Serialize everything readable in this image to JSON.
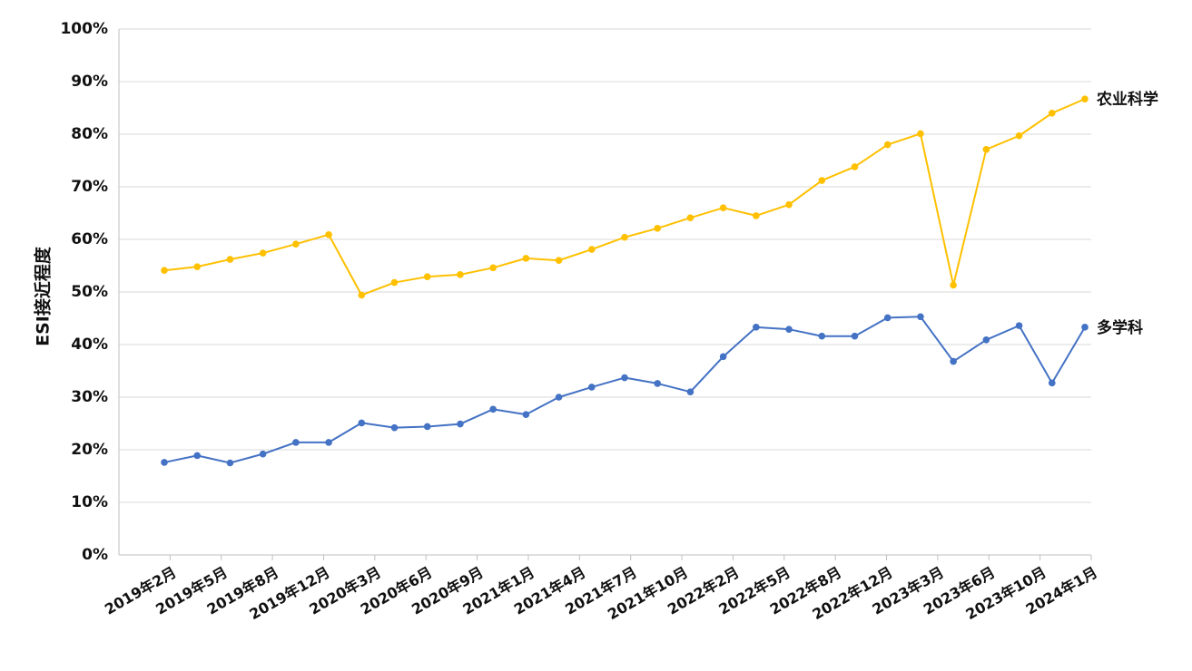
{
  "chart_data": {
    "type": "line",
    "title": "",
    "ylabel": "ESI接近程度",
    "xlabel": "",
    "ylim": [
      0,
      100
    ],
    "yticks": [
      "0%",
      "10%",
      "20%",
      "30%",
      "40%",
      "50%",
      "60%",
      "70%",
      "80%",
      "90%",
      "100%"
    ],
    "xticks": [
      "2019年2月",
      "2019年5月",
      "2019年8月",
      "2019年12月",
      "2020年3月",
      "2020年6月",
      "2020年9月",
      "2021年1月",
      "2021年4月",
      "2021年7月",
      "2021年10月",
      "2022年2月",
      "2022年5月",
      "2022年8月",
      "2022年12月",
      "2023年3月",
      "2023年6月",
      "2023年10月",
      "2024年1月"
    ],
    "grid": true,
    "legend": "none",
    "series": [
      {
        "name": "农业科学",
        "color": "#FFC000",
        "values": [
          54.1,
          54.8,
          56.2,
          57.4,
          59.1,
          60.9,
          49.4,
          51.8,
          52.9,
          53.3,
          54.6,
          56.4,
          56.0,
          58.1,
          60.4,
          62.1,
          64.1,
          66.0,
          64.5,
          66.6,
          71.2,
          73.8,
          78.0,
          80.1,
          51.3,
          77.1,
          79.7,
          84.0,
          86.7
        ]
      },
      {
        "name": "多学科",
        "color": "#4472C4",
        "values": [
          17.6,
          18.9,
          17.5,
          19.2,
          21.4,
          21.4,
          25.1,
          24.2,
          24.4,
          24.9,
          27.7,
          26.7,
          30.0,
          31.9,
          33.7,
          32.6,
          31.0,
          37.7,
          43.3,
          42.9,
          41.6,
          41.6,
          45.1,
          45.3,
          36.8,
          40.9,
          43.6,
          32.7,
          43.3
        ]
      }
    ]
  }
}
